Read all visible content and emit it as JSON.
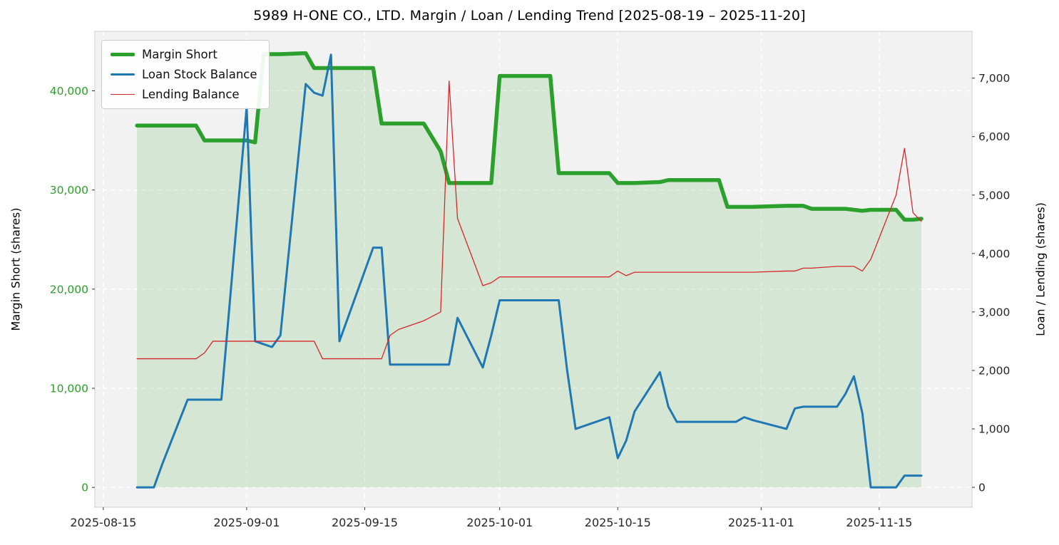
{
  "chart_data": {
    "type": "line",
    "title": "5989 H-ONE CO., LTD. Margin / Loan / Lending Trend [2025-08-19 – 2025-11-20]",
    "plot_bg": "#f2f2f2",
    "grid": "on",
    "legend_position": "upper-left",
    "x_axis": {
      "range": [
        "2025-08-14",
        "2025-11-26"
      ],
      "ticks": [
        "2025-08-15",
        "2025-09-01",
        "2025-09-15",
        "2025-10-01",
        "2025-10-15",
        "2025-11-01",
        "2025-11-15"
      ]
    },
    "left_axis": {
      "label": "Margin Short (shares)",
      "color": "#2ca02c",
      "ticks": [
        0,
        10000,
        20000,
        30000,
        40000
      ],
      "range": [
        -2000,
        46000
      ]
    },
    "right_axis": {
      "label": "Loan / Lending (shares)",
      "color": "#262626",
      "ticks": [
        0,
        1000,
        2000,
        3000,
        4000,
        5000,
        6000,
        7000
      ],
      "range": [
        -340,
        7800
      ]
    },
    "x_dates": [
      "2025-08-19",
      "2025-08-20",
      "2025-08-21",
      "2025-08-22",
      "2025-08-25",
      "2025-08-26",
      "2025-08-27",
      "2025-08-28",
      "2025-08-29",
      "2025-09-01",
      "2025-09-02",
      "2025-09-03",
      "2025-09-04",
      "2025-09-05",
      "2025-09-08",
      "2025-09-09",
      "2025-09-10",
      "2025-09-11",
      "2025-09-12",
      "2025-09-16",
      "2025-09-17",
      "2025-09-18",
      "2025-09-19",
      "2025-09-22",
      "2025-09-24",
      "2025-09-25",
      "2025-09-26",
      "2025-09-29",
      "2025-09-30",
      "2025-10-01",
      "2025-10-02",
      "2025-10-03",
      "2025-10-06",
      "2025-10-07",
      "2025-10-08",
      "2025-10-09",
      "2025-10-10",
      "2025-10-14",
      "2025-10-15",
      "2025-10-16",
      "2025-10-17",
      "2025-10-20",
      "2025-10-21",
      "2025-10-22",
      "2025-10-23",
      "2025-10-24",
      "2025-10-27",
      "2025-10-28",
      "2025-10-29",
      "2025-10-30",
      "2025-10-31",
      "2025-11-04",
      "2025-11-05",
      "2025-11-06",
      "2025-11-07",
      "2025-11-10",
      "2025-11-11",
      "2025-11-12",
      "2025-11-13",
      "2025-11-14",
      "2025-11-17",
      "2025-11-18",
      "2025-11-19",
      "2025-11-20"
    ],
    "series": [
      {
        "name": "Margin Short",
        "axis": "left",
        "color": "#2ca02c",
        "width": 5.5,
        "fill": true,
        "fill_opacity": 0.15,
        "values": [
          36500,
          36500,
          36500,
          36500,
          36500,
          36500,
          35000,
          35000,
          35000,
          35000,
          34800,
          43700,
          43700,
          43700,
          43800,
          42300,
          42300,
          42300,
          42300,
          42300,
          36700,
          36700,
          36700,
          36700,
          33900,
          30700,
          30700,
          30700,
          30700,
          41500,
          41500,
          41500,
          41500,
          41500,
          31700,
          31700,
          31700,
          31700,
          30700,
          30700,
          30700,
          30800,
          31000,
          31000,
          31000,
          31000,
          31000,
          28300,
          28300,
          28300,
          28300,
          28400,
          28400,
          28400,
          28100,
          28100,
          28100,
          28000,
          27900,
          28000,
          28000,
          27000,
          27000,
          27100
        ]
      },
      {
        "name": "Loan Stock Balance",
        "axis": "right",
        "color": "#1f77b4",
        "width": 3,
        "fill": false,
        "values": [
          0,
          0,
          0,
          400,
          1500,
          1500,
          1500,
          1500,
          1500,
          6500,
          2500,
          2450,
          2400,
          2600,
          6900,
          6750,
          6700,
          7400,
          2500,
          4100,
          4100,
          2100,
          2100,
          2100,
          2100,
          2100,
          2900,
          2050,
          2600,
          3200,
          3200,
          3200,
          3200,
          3200,
          3200,
          2000,
          1000,
          1200,
          500,
          800,
          1300,
          1970,
          1380,
          1120,
          1120,
          1120,
          1120,
          1120,
          1120,
          1200,
          1150,
          1000,
          1350,
          1380,
          1380,
          1380,
          1600,
          1900,
          1270,
          0,
          0,
          200,
          200,
          200
        ]
      },
      {
        "name": "Lending Balance",
        "axis": "right",
        "color": "#d62728",
        "width": 1.3,
        "fill": false,
        "values": [
          2200,
          2200,
          2200,
          2200,
          2200,
          2200,
          2300,
          2500,
          2500,
          2500,
          2500,
          2500,
          2500,
          2500,
          2500,
          2500,
          2200,
          2200,
          2200,
          2200,
          2200,
          2600,
          2700,
          2850,
          3000,
          6950,
          4600,
          3450,
          3500,
          3600,
          3600,
          3600,
          3600,
          3600,
          3600,
          3600,
          3600,
          3600,
          3700,
          3620,
          3680,
          3680,
          3680,
          3680,
          3680,
          3680,
          3680,
          3680,
          3680,
          3680,
          3680,
          3700,
          3700,
          3750,
          3750,
          3780,
          3780,
          3780,
          3700,
          3900,
          5000,
          5800,
          4700,
          4550
        ]
      }
    ]
  }
}
